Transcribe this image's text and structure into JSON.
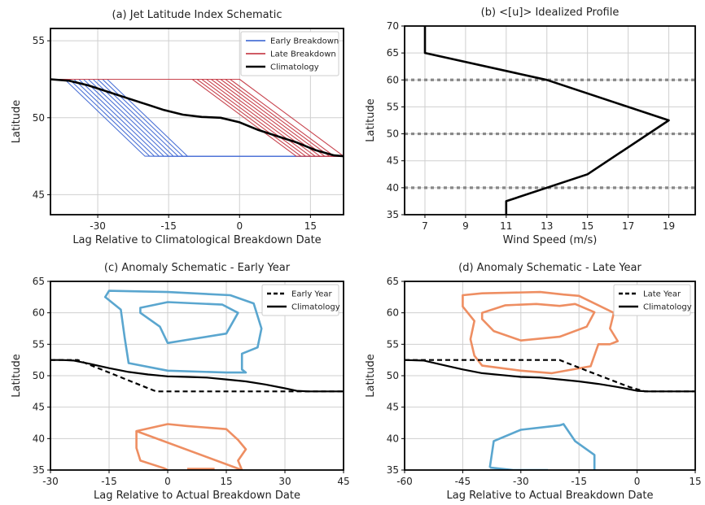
{
  "chart_data": [
    {
      "id": "a",
      "type": "line",
      "title": "(a) Jet Latitude Index Schematic",
      "xlabel": "Lag Relative to Climatological Breakdown Date",
      "ylabel": "Latitude",
      "xlim": [
        -40,
        22
      ],
      "ylim": [
        43.7,
        55.8
      ],
      "xticks": [
        -30,
        -15,
        0,
        15
      ],
      "yticks": [
        45,
        50,
        55
      ],
      "grid": true,
      "legend_position": "top-right",
      "legend": [
        {
          "label": "Early Breakdown",
          "color": "#4c72d6",
          "style": "solid"
        },
        {
          "label": "Late Breakdown",
          "color": "#c8454f",
          "style": "solid"
        },
        {
          "label": "Climatology",
          "color": "#000000",
          "style": "solid"
        }
      ],
      "series": [
        {
          "name": "Climatology",
          "color": "#000000",
          "width": 2.6,
          "x": [
            -40,
            -36,
            -32,
            -28,
            -24,
            -20,
            -16,
            -12,
            -8,
            -4,
            0,
            4,
            8,
            12,
            16,
            20,
            22
          ],
          "y": [
            52.5,
            52.4,
            52.1,
            51.7,
            51.3,
            50.9,
            50.5,
            50.2,
            50.05,
            50.0,
            49.7,
            49.2,
            48.8,
            48.4,
            47.9,
            47.55,
            47.5
          ]
        },
        {
          "name": "Early Breakdown",
          "color": "#4c72d6",
          "width": 1.1,
          "lines": [
            {
              "x": [
                -40,
                -33,
                -16,
                22
              ],
              "y": [
                52.5,
                52.5,
                47.5,
                47.5
              ]
            },
            {
              "x": [
                -40,
                -32,
                -15,
                22
              ],
              "y": [
                52.5,
                52.5,
                47.5,
                47.5
              ]
            },
            {
              "x": [
                -40,
                -31,
                -14,
                22
              ],
              "y": [
                52.5,
                52.5,
                47.5,
                47.5
              ]
            },
            {
              "x": [
                -40,
                -30,
                -13,
                22
              ],
              "y": [
                52.5,
                52.5,
                47.5,
                47.5
              ]
            },
            {
              "x": [
                -40,
                -29,
                -12,
                22
              ],
              "y": [
                52.5,
                52.5,
                47.5,
                47.5
              ]
            },
            {
              "x": [
                -40,
                -28,
                -11,
                22
              ],
              "y": [
                52.5,
                52.5,
                47.5,
                47.5
              ]
            },
            {
              "x": [
                -40,
                -37,
                -20,
                22
              ],
              "y": [
                52.5,
                52.5,
                47.5,
                47.5
              ]
            },
            {
              "x": [
                -40,
                -36,
                -19,
                22
              ],
              "y": [
                52.5,
                52.5,
                47.5,
                47.5
              ]
            },
            {
              "x": [
                -40,
                -35,
                -18,
                22
              ],
              "y": [
                52.5,
                52.5,
                47.5,
                47.5
              ]
            },
            {
              "x": [
                -40,
                -34,
                -17,
                22
              ],
              "y": [
                52.5,
                52.5,
                47.5,
                47.5
              ]
            }
          ]
        },
        {
          "name": "Late Breakdown",
          "color": "#c8454f",
          "width": 1.1,
          "lines": [
            {
              "x": [
                -40,
                -10,
                12,
                22
              ],
              "y": [
                52.5,
                52.5,
                47.5,
                47.5
              ]
            },
            {
              "x": [
                -40,
                -9,
                13,
                22
              ],
              "y": [
                52.5,
                52.5,
                47.5,
                47.5
              ]
            },
            {
              "x": [
                -40,
                -8,
                14,
                22
              ],
              "y": [
                52.5,
                52.5,
                47.5,
                47.5
              ]
            },
            {
              "x": [
                -40,
                -7,
                15,
                22
              ],
              "y": [
                52.5,
                52.5,
                47.5,
                47.5
              ]
            },
            {
              "x": [
                -40,
                -6,
                16,
                22
              ],
              "y": [
                52.5,
                52.5,
                47.5,
                47.5
              ]
            },
            {
              "x": [
                -40,
                -5,
                17,
                22
              ],
              "y": [
                52.5,
                52.5,
                47.5,
                47.5
              ]
            },
            {
              "x": [
                -40,
                -4,
                18,
                22
              ],
              "y": [
                52.5,
                52.5,
                47.5,
                47.5
              ]
            },
            {
              "x": [
                -40,
                -3,
                19,
                22
              ],
              "y": [
                52.5,
                52.5,
                47.5,
                47.5
              ]
            },
            {
              "x": [
                -40,
                -2,
                20,
                22
              ],
              "y": [
                52.5,
                52.5,
                47.5,
                47.5
              ]
            },
            {
              "x": [
                -40,
                0,
                22,
                22
              ],
              "y": [
                52.5,
                52.5,
                47.5,
                47.5
              ]
            }
          ]
        }
      ]
    },
    {
      "id": "b",
      "type": "line",
      "title": "(b) <[u]> Idealized Profile",
      "xlabel": "Wind Speed (m/s)",
      "ylabel": "Latitude",
      "xlim": [
        6,
        20.3
      ],
      "ylim": [
        35,
        70
      ],
      "xticks": [
        7,
        9,
        11,
        13,
        15,
        17,
        19
      ],
      "yticks": [
        35,
        40,
        45,
        50,
        55,
        60,
        65,
        70
      ],
      "grid": true,
      "hlines": [
        {
          "y": 40,
          "color": "#888888",
          "style": "dotted"
        },
        {
          "y": 50,
          "color": "#888888",
          "style": "dotted"
        },
        {
          "y": 60,
          "color": "#888888",
          "style": "dotted"
        }
      ],
      "series": [
        {
          "color": "#000000",
          "width": 2.6,
          "x": [
            7,
            7,
            13,
            19,
            15,
            11,
            11
          ],
          "y": [
            70,
            65,
            60,
            52.5,
            42.5,
            37.5,
            35
          ]
        }
      ]
    },
    {
      "id": "c",
      "type": "line",
      "title": "(c) Anomaly Schematic - Early Year",
      "xlabel": "Lag Relative to Actual Breakdown Date",
      "ylabel": "Latitude",
      "xlim": [
        -30,
        45
      ],
      "ylim": [
        35,
        65
      ],
      "xticks": [
        -30,
        -15,
        0,
        15,
        30,
        45
      ],
      "yticks": [
        35,
        40,
        45,
        50,
        55,
        60,
        65
      ],
      "grid": true,
      "legend_position": "top-right",
      "legend": [
        {
          "label": "Early Year",
          "color": "#000000",
          "style": "dashed"
        },
        {
          "label": "Climatology",
          "color": "#000000",
          "style": "solid"
        }
      ],
      "series": [
        {
          "name": "Early Year",
          "color": "#000000",
          "width": 2.2,
          "dash": "6 4",
          "x": [
            -30,
            -23,
            -3,
            33,
            45
          ],
          "y": [
            52.5,
            52.5,
            47.5,
            47.5,
            47.5
          ]
        },
        {
          "name": "Climatology",
          "color": "#000000",
          "width": 2.2,
          "x": [
            -30,
            -27,
            -24,
            -20,
            -15,
            -10,
            -5,
            0,
            5,
            10,
            15,
            20,
            25,
            30,
            33,
            36,
            45
          ],
          "y": [
            52.5,
            52.5,
            52.4,
            51.9,
            51.2,
            50.6,
            50.2,
            49.9,
            49.8,
            49.7,
            49.4,
            49.1,
            48.6,
            48.0,
            47.6,
            47.5,
            47.5
          ]
        }
      ],
      "contours": [
        {
          "color": "#5aa6cf",
          "closed": true,
          "x": [
            -16,
            -15,
            0,
            16,
            22,
            24,
            23,
            19,
            19,
            20,
            15,
            0,
            -10,
            -11,
            -12
          ],
          "y": [
            62.5,
            63.5,
            63.3,
            62.8,
            61.5,
            57.5,
            54.5,
            53.5,
            51,
            50.5,
            50.5,
            50.8,
            52,
            56,
            60.5
          ]
        },
        {
          "color": "#5aa6cf",
          "closed": true,
          "x": [
            -7,
            0,
            14,
            18,
            15,
            5,
            0,
            -2,
            -7
          ],
          "y": [
            60.8,
            61.7,
            61.3,
            60,
            56.7,
            55.7,
            55.2,
            57.8,
            60
          ]
        },
        {
          "color": "#ee8e62",
          "closed": true,
          "x": [
            -8,
            0,
            5,
            15,
            18,
            20,
            18,
            19
          ],
          "y": [
            41.2,
            42.3,
            42.0,
            41.5,
            39.8,
            38.3,
            36.5,
            35
          ]
        },
        {
          "color": "#ee8e62",
          "closed": false,
          "x": [
            -8,
            -8,
            -7,
            -1,
            0
          ],
          "y": [
            41.2,
            38.5,
            36.5,
            35.3,
            35
          ]
        },
        {
          "color": "#ee8e62",
          "closed": false,
          "x": [
            5,
            12
          ],
          "y": [
            35.2,
            35.2
          ]
        }
      ]
    },
    {
      "id": "d",
      "type": "line",
      "title": "(d) Anomaly Schematic - Late Year",
      "xlabel": "Lag Relative to Actual Breakdown Date",
      "ylabel": "Latitude",
      "xlim": [
        -60,
        15
      ],
      "ylim": [
        35,
        65
      ],
      "xticks": [
        -60,
        -45,
        -30,
        -15,
        0,
        15
      ],
      "yticks": [
        35,
        40,
        45,
        50,
        55,
        60,
        65
      ],
      "grid": true,
      "legend_position": "top-right",
      "legend": [
        {
          "label": "Late Year",
          "color": "#000000",
          "style": "dashed"
        },
        {
          "label": "Climatology",
          "color": "#000000",
          "style": "solid"
        }
      ],
      "series": [
        {
          "name": "Late Year",
          "color": "#000000",
          "width": 2.2,
          "dash": "6 4",
          "x": [
            -60,
            -20,
            -13,
            -2,
            2,
            15
          ],
          "y": [
            52.5,
            52.5,
            50.8,
            48.2,
            47.5,
            47.5
          ]
        },
        {
          "name": "Climatology",
          "color": "#000000",
          "width": 2.2,
          "x": [
            -60,
            -55,
            -50,
            -45,
            -40,
            -35,
            -30,
            -25,
            -20,
            -15,
            -10,
            -5,
            0,
            3,
            15
          ],
          "y": [
            52.5,
            52.4,
            51.7,
            51.0,
            50.4,
            50.1,
            49.8,
            49.7,
            49.4,
            49.1,
            48.7,
            48.2,
            47.6,
            47.5,
            47.5
          ]
        }
      ],
      "contours": [
        {
          "color": "#ee8e62",
          "closed": true,
          "x": [
            -45,
            -45,
            -40,
            -25,
            -19,
            -15,
            -6,
            -7,
            -5,
            -7,
            -10,
            -12,
            -22,
            -30,
            -40,
            -42,
            -43,
            -42
          ],
          "y": [
            61,
            62.8,
            63.1,
            63.3,
            62.9,
            62.7,
            60,
            57.5,
            55.5,
            55.0,
            55.0,
            51.5,
            50.4,
            50.8,
            51.6,
            53.2,
            55.8,
            58.7
          ]
        },
        {
          "color": "#ee8e62",
          "closed": true,
          "x": [
            -40,
            -34,
            -26,
            -20,
            -16,
            -11,
            -13,
            -20,
            -30,
            -37,
            -40
          ],
          "y": [
            60,
            61.2,
            61.4,
            61.1,
            61.4,
            60.1,
            57.8,
            56.2,
            55.6,
            57.1,
            59
          ]
        },
        {
          "color": "#5aa6cf",
          "closed": false,
          "x": [
            -38,
            -37,
            -30,
            -20,
            -19,
            -16,
            -11,
            -11
          ],
          "y": [
            35.4,
            39.6,
            41.4,
            42.1,
            42.3,
            39.6,
            37.4,
            35
          ]
        },
        {
          "color": "#5aa6cf",
          "closed": false,
          "x": [
            -38,
            -32,
            -23
          ],
          "y": [
            35.4,
            35.0,
            35.0
          ]
        }
      ]
    }
  ]
}
